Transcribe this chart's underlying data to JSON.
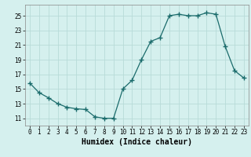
{
  "x": [
    0,
    1,
    2,
    3,
    4,
    5,
    6,
    7,
    8,
    9,
    10,
    11,
    12,
    13,
    14,
    15,
    16,
    17,
    18,
    19,
    20,
    21,
    22,
    23
  ],
  "y": [
    15.8,
    14.5,
    13.8,
    13.0,
    12.5,
    12.3,
    12.2,
    11.2,
    11.0,
    11.0,
    15.0,
    16.2,
    19.0,
    21.5,
    22.0,
    25.0,
    25.2,
    25.0,
    25.0,
    25.4,
    25.2,
    20.8,
    17.5,
    16.5
  ],
  "line_color": "#1a6b6b",
  "marker_color": "#1a6b6b",
  "bg_color": "#d5f0ee",
  "grid_color": "#b8dbd8",
  "xlabel": "Humidex (Indice chaleur)",
  "xlim": [
    -0.5,
    23.5
  ],
  "ylim": [
    10.0,
    26.5
  ],
  "yticks": [
    11,
    13,
    15,
    17,
    19,
    21,
    23,
    25
  ],
  "xticks": [
    0,
    1,
    2,
    3,
    4,
    5,
    6,
    7,
    8,
    9,
    10,
    11,
    12,
    13,
    14,
    15,
    16,
    17,
    18,
    19,
    20,
    21,
    22,
    23
  ],
  "tick_fontsize": 5.5,
  "xlabel_fontsize": 7.0,
  "marker_size": 2.5,
  "linewidth": 0.9
}
